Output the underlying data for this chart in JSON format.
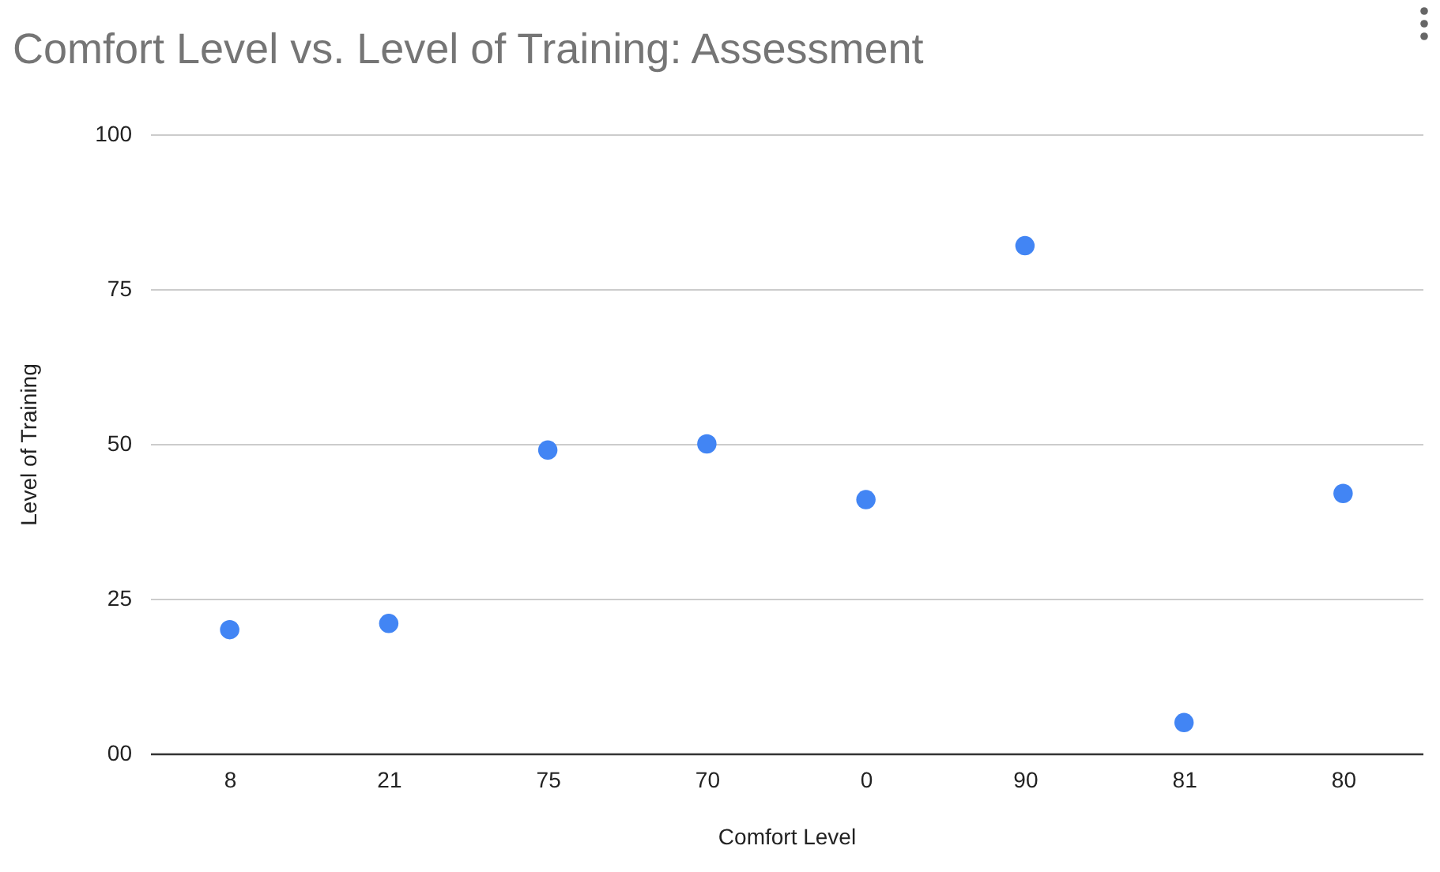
{
  "chart_data": {
    "type": "scatter",
    "title": "Comfort Level vs. Level of Training: Assessment",
    "xlabel": "Comfort Level",
    "ylabel": "Level of Training",
    "categories": [
      "8",
      "21",
      "75",
      "70",
      "0",
      "90",
      "81",
      "80"
    ],
    "series": [
      {
        "color": "#4285f4",
        "values": [
          20,
          21,
          49,
          50,
          41,
          82,
          5,
          42
        ]
      }
    ],
    "ylim": [
      0,
      100
    ],
    "yticks": [
      {
        "value": 0,
        "label": "00"
      },
      25,
      50,
      75,
      100
    ],
    "grid": "y",
    "marker": "circle"
  }
}
